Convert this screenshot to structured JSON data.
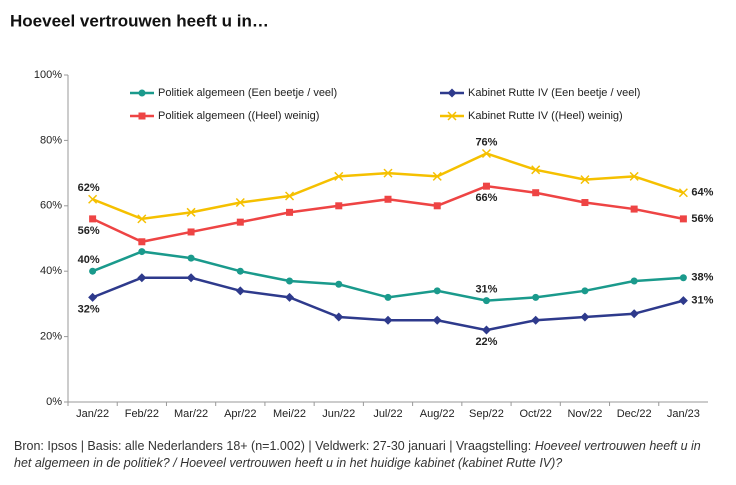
{
  "chart_data": {
    "type": "line",
    "title": "Hoeveel vertrouwen heeft u in…",
    "categories": [
      "Jan/22",
      "Feb/22",
      "Mar/22",
      "Apr/22",
      "Mei/22",
      "Jun/22",
      "Jul/22",
      "Aug/22",
      "Sep/22",
      "Oct/22",
      "Nov/22",
      "Dec/22",
      "Jan/23"
    ],
    "series": [
      {
        "name": "Politiek algemeen (Een beetje / veel)",
        "color": "#1a9a8c",
        "marker": "circle",
        "values": [
          40,
          46,
          44,
          40,
          37,
          36,
          32,
          34,
          31,
          32,
          34,
          37,
          38
        ],
        "value_labels": [
          "40%",
          null,
          null,
          null,
          null,
          null,
          null,
          null,
          "31%",
          null,
          null,
          null,
          "38%"
        ]
      },
      {
        "name": "Kabinet Rutte IV (Een beetje / veel)",
        "color": "#2e3a8c",
        "marker": "diamond",
        "values": [
          32,
          38,
          38,
          34,
          32,
          26,
          25,
          25,
          22,
          25,
          26,
          27,
          31
        ],
        "value_labels": [
          "32%",
          null,
          null,
          null,
          null,
          null,
          null,
          null,
          "22%",
          null,
          null,
          null,
          "31%"
        ]
      },
      {
        "name": "Politiek algemeen ((Heel) weinig)",
        "color": "#ee4444",
        "marker": "square",
        "values": [
          56,
          49,
          52,
          55,
          58,
          60,
          62,
          60,
          66,
          64,
          61,
          59,
          56
        ],
        "value_labels": [
          "56%",
          null,
          null,
          null,
          null,
          null,
          null,
          null,
          "66%",
          null,
          null,
          null,
          "56%"
        ]
      },
      {
        "name": "Kabinet Rutte IV ((Heel) weinig)",
        "color": "#f5c000",
        "marker": "x",
        "values": [
          62,
          56,
          58,
          61,
          63,
          69,
          70,
          69,
          76,
          71,
          68,
          69,
          64
        ],
        "value_labels": [
          "62%",
          null,
          null,
          null,
          null,
          null,
          null,
          null,
          "76%",
          null,
          null,
          null,
          "64%"
        ]
      }
    ],
    "ylim": [
      0,
      100
    ],
    "yticks": [
      {
        "value": 0,
        "label": "0%"
      },
      {
        "value": 20,
        "label": "20%"
      },
      {
        "value": 40,
        "label": "40%"
      },
      {
        "value": 60,
        "label": "60%"
      },
      {
        "value": 80,
        "label": "80%"
      },
      {
        "value": 100,
        "label": "100%"
      }
    ],
    "grid": false,
    "footnote": {
      "text": "Bron: Ipsos | Basis: alle Nederlanders 18+ (n=1.002) | Veldwerk: 27-30 januari | Vraagstelling: ",
      "question": "Hoeveel vertrouwen heeft u in het algemeen in de politiek? / Hoeveel vertrouwen heeft u in het huidige kabinet (kabinet Rutte IV)?"
    }
  }
}
